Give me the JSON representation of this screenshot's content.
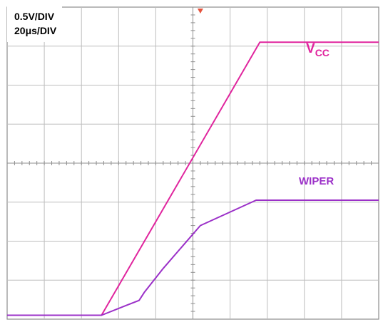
{
  "chart_data": {
    "type": "line",
    "title": "",
    "scale_labels": {
      "vertical": "0.5V/DIV",
      "horizontal": "20μs/DIV"
    },
    "x_units": "divisions",
    "y_units": "divisions",
    "xlim": [
      0,
      10
    ],
    "ylim": [
      0,
      8
    ],
    "grid": true,
    "trigger_marker": {
      "x": 5.2,
      "color": "#e5533d"
    },
    "series": [
      {
        "name": "VCC",
        "name_main": "V",
        "name_sub": "CC",
        "color": "#e0259e",
        "x": [
          0,
          2.54,
          6.8,
          10
        ],
        "y": [
          0.1,
          0.1,
          7.1,
          7.1
        ]
      },
      {
        "name": "WIPER",
        "color": "#9b30c8",
        "x": [
          0,
          2.54,
          3.2,
          3.55,
          3.7,
          4.2,
          5.2,
          6.7,
          10
        ],
        "y": [
          0.1,
          0.1,
          0.35,
          0.48,
          0.7,
          1.3,
          2.4,
          3.05,
          3.05
        ]
      }
    ]
  }
}
